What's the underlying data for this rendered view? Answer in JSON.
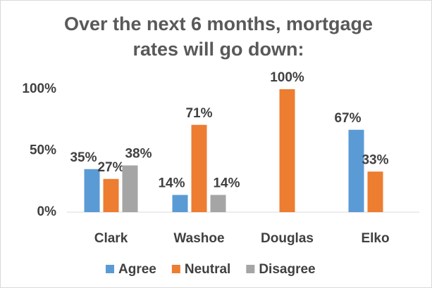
{
  "chart_data": {
    "type": "bar",
    "title": "Over the next 6 months, mortgage rates will go down:",
    "categories": [
      "Clark",
      "Washoe",
      "Douglas",
      "Elko"
    ],
    "series": [
      {
        "name": "Agree",
        "color": "#5b9bd5",
        "values": [
          35,
          14,
          null,
          67
        ],
        "value_labels": [
          "35%",
          "14%",
          null,
          "67%"
        ]
      },
      {
        "name": "Neutral",
        "color": "#ed7d31",
        "values": [
          27,
          71,
          100,
          33
        ],
        "value_labels": [
          "27%",
          "71%",
          "100%",
          "33%"
        ]
      },
      {
        "name": "Disagree",
        "color": "#a5a5a5",
        "values": [
          38,
          14,
          null,
          null
        ],
        "value_labels": [
          "38%",
          "14%",
          null,
          null
        ]
      }
    ],
    "ylim": [
      0,
      100
    ],
    "yticks": [
      {
        "value": 0,
        "label": "0%"
      },
      {
        "value": 50,
        "label": "50%"
      },
      {
        "value": 100,
        "label": "100%"
      }
    ],
    "grid": false,
    "legend": "bottom"
  }
}
